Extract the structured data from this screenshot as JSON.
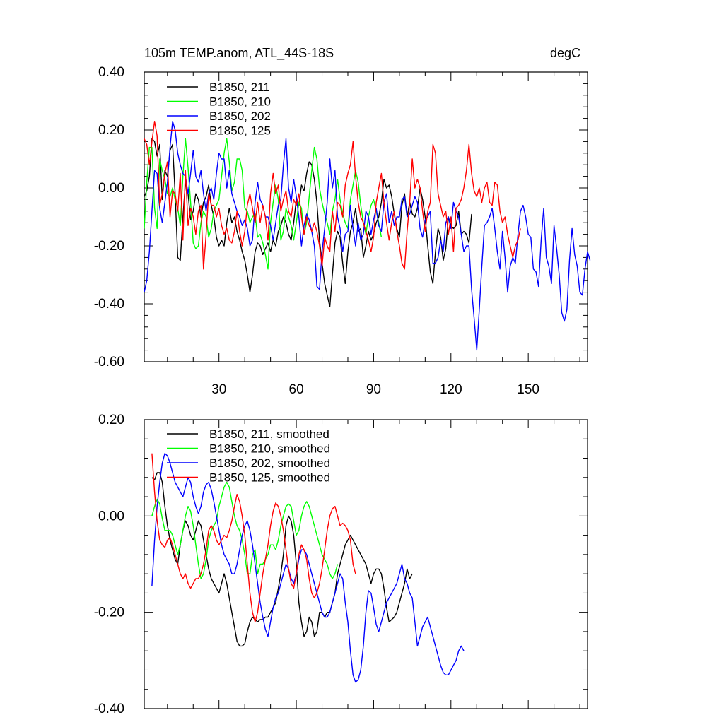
{
  "chart_data": [
    {
      "type": "line",
      "title": "105m TEMP.anom, ATL_44S-18S",
      "units": "degC",
      "xlim": [
        1,
        173
      ],
      "ylim": [
        -0.6,
        0.4
      ],
      "yticks": [
        -0.6,
        -0.4,
        -0.2,
        0.0,
        0.2,
        0.4
      ],
      "ytick_labels": [
        "-0.60",
        "-0.40",
        "-0.20",
        "0.00",
        "0.20",
        "0.40"
      ],
      "xticks": [
        30,
        60,
        90,
        120,
        150
      ],
      "xtick_labels": [
        "30",
        "60",
        "90",
        "120",
        "150"
      ],
      "series": [
        {
          "name": "B1850, 211",
          "color": "#000000",
          "x_start": 1,
          "values": [
            -0.03,
            -0.01,
            0.04,
            0.17,
            0.16,
            0.11,
            0.15,
            -0.04,
            0.06,
            0.04,
            0.13,
            0.15,
            -0.02,
            -0.24,
            -0.25,
            -0.1,
            0.02,
            -0.02,
            -0.11,
            -0.08,
            -0.02,
            -0.04,
            -0.1,
            -0.05,
            -0.03,
            0.01,
            -0.06,
            -0.1,
            -0.17,
            -0.2,
            -0.18,
            -0.2,
            -0.12,
            -0.07,
            -0.12,
            -0.1,
            -0.15,
            -0.18,
            -0.22,
            -0.25,
            -0.3,
            -0.36,
            -0.3,
            -0.22,
            -0.19,
            -0.2,
            -0.23,
            -0.21,
            -0.19,
            -0.22,
            -0.18,
            -0.2,
            -0.15,
            -0.13,
            -0.1,
            -0.12,
            -0.16,
            -0.18,
            -0.12,
            -0.04,
            -0.06,
            0.01,
            -0.01,
            0.05,
            0.09,
            0.08,
            0.03,
            -0.05,
            -0.18,
            -0.26,
            -0.33,
            -0.37,
            -0.41,
            -0.3,
            -0.19,
            -0.15,
            -0.17,
            -0.26,
            -0.33,
            -0.22,
            -0.15,
            -0.12,
            -0.07,
            -0.15,
            -0.14,
            -0.24,
            -0.2,
            -0.15,
            -0.18,
            -0.16,
            -0.12,
            -0.1,
            -0.05,
            0.03,
            0.0,
            0.01,
            -0.03,
            -0.09,
            -0.14,
            -0.17,
            -0.06,
            -0.02,
            -0.1,
            -0.05,
            -0.09,
            -0.1,
            -0.07,
            0.0,
            -0.04,
            -0.1,
            -0.2,
            -0.29,
            -0.33,
            -0.22,
            -0.14,
            -0.17,
            -0.25,
            -0.21,
            -0.1,
            -0.13,
            -0.14,
            -0.13,
            -0.08,
            -0.16,
            -0.15,
            -0.16,
            -0.19,
            -0.09
          ]
        },
        {
          "name": "B1850, 210",
          "color": "#00ff00",
          "x_start": 1,
          "values": [
            -0.14,
            0.02,
            0.14,
            0.14,
            -0.07,
            -0.14,
            0.1,
            0.06,
            0.03,
            -0.02,
            -0.03,
            0.0,
            -0.04,
            -0.07,
            -0.13,
            0.04,
            0.17,
            0.07,
            -0.05,
            -0.19,
            -0.21,
            -0.2,
            -0.12,
            -0.08,
            -0.1,
            -0.17,
            -0.14,
            -0.08,
            -0.06,
            -0.04,
            0.04,
            0.12,
            0.17,
            0.09,
            -0.01,
            0.02,
            0.1,
            0.1,
            0.06,
            -0.07,
            -0.08,
            -0.12,
            -0.1,
            -0.09,
            -0.17,
            -0.16,
            -0.19,
            -0.23,
            -0.28,
            -0.12,
            -0.05,
            0.01,
            -0.04,
            -0.18,
            -0.15,
            -0.07,
            -0.1,
            -0.13,
            -0.18,
            -0.12,
            -0.05,
            -0.07,
            -0.16,
            -0.12,
            -0.03,
            0.06,
            0.14,
            0.1,
            0.0,
            -0.05,
            -0.09,
            -0.12,
            -0.16,
            -0.08,
            -0.04,
            0.03,
            -0.04,
            -0.09,
            -0.12,
            -0.14,
            -0.04,
            0.01,
            0.06,
            0.02,
            -0.06,
            -0.12,
            -0.16,
            -0.1,
            -0.06,
            -0.04,
            -0.08,
            -0.12,
            -0.17
          ]
        },
        {
          "name": "B1850, 202",
          "color": "#0000ff",
          "x_start": 1,
          "values": [
            -0.36,
            -0.32,
            -0.22,
            -0.08,
            0.06,
            0.05,
            -0.07,
            -0.12,
            -0.05,
            0.02,
            0.14,
            0.23,
            0.2,
            0.12,
            0.08,
            0.05,
            0.04,
            -0.02,
            0.05,
            0.13,
            0.04,
            0.02,
            0.06,
            -0.02,
            -0.08,
            -0.02,
            0.0,
            -0.04,
            0.05,
            0.12,
            0.1,
            0.1,
            0.0,
            0.06,
            -0.02,
            -0.05,
            -0.08,
            -0.1,
            -0.13,
            -0.11,
            -0.14,
            -0.2,
            -0.18,
            -0.05,
            0.02,
            -0.04,
            -0.06,
            -0.1,
            -0.1,
            -0.13,
            -0.18,
            -0.12,
            -0.06,
            -0.04,
            0.08,
            0.17,
            0.0,
            -0.05,
            0.03,
            -0.03,
            -0.1,
            -0.2,
            -0.13,
            -0.09,
            -0.11,
            -0.15,
            -0.2,
            -0.34,
            -0.35,
            -0.22,
            -0.14,
            -0.05,
            0.1,
            0.0,
            0.06,
            -0.1,
            -0.14,
            -0.22,
            -0.16,
            -0.15,
            -0.06,
            -0.14,
            -0.2,
            -0.12,
            -0.18,
            -0.16,
            -0.08,
            -0.1,
            -0.16,
            -0.11,
            -0.07,
            -0.13,
            -0.15,
            -0.05,
            -0.02,
            -0.12,
            -0.08,
            -0.13,
            -0.1,
            -0.1,
            -0.04,
            -0.03,
            -0.1,
            -0.09,
            -0.06,
            -0.03,
            -0.05,
            -0.14,
            -0.17,
            -0.11,
            -0.1,
            -0.08,
            -0.26,
            -0.26,
            -0.24,
            -0.18,
            -0.22,
            -0.12,
            -0.1,
            -0.14,
            -0.05,
            -0.08,
            -0.1,
            -0.16,
            -0.22,
            -0.2,
            -0.2,
            -0.35,
            -0.45,
            -0.56,
            -0.42,
            -0.27,
            -0.13,
            -0.12,
            -0.1,
            -0.07,
            -0.14,
            -0.22,
            -0.28,
            -0.15,
            -0.24,
            -0.36,
            -0.27,
            -0.24,
            -0.26,
            -0.16,
            -0.08,
            -0.06,
            -0.1,
            -0.16,
            -0.17,
            -0.28,
            -0.29,
            -0.34,
            -0.18,
            -0.07,
            -0.24,
            -0.27,
            -0.33,
            -0.13,
            -0.21,
            -0.3,
            -0.43,
            -0.46,
            -0.42,
            -0.25,
            -0.14,
            -0.23,
            -0.27,
            -0.36,
            -0.37,
            -0.28,
            -0.22,
            -0.25
          ]
        },
        {
          "name": "B1850, 125",
          "color": "#ff0000",
          "x_start": 1,
          "values": [
            0.17,
            0.15,
            0.08,
            0.16,
            0.23,
            0.18,
            -0.06,
            -0.02,
            0.05,
            0.09,
            -0.1,
            -0.01,
            -0.02,
            -0.08,
            0.05,
            -0.18,
            0.06,
            -0.13,
            -0.07,
            -0.1,
            -0.16,
            -0.08,
            -0.06,
            -0.28,
            -0.16,
            -0.02,
            -0.06,
            -0.06,
            -0.1,
            -0.07,
            -0.13,
            -0.16,
            -0.14,
            -0.18,
            -0.19,
            -0.15,
            -0.08,
            -0.15,
            -0.2,
            -0.15,
            -0.06,
            -0.02,
            -0.07,
            -0.12,
            -0.05,
            -0.12,
            -0.06,
            -0.1,
            -0.18,
            -0.02,
            0.05,
            -0.02,
            0.01,
            -0.08,
            -0.04,
            -0.01,
            -0.08,
            -0.1,
            -0.04,
            -0.06,
            -0.02,
            -0.1,
            -0.16,
            -0.1,
            -0.13,
            -0.15,
            -0.12,
            -0.15,
            -0.2,
            -0.27,
            -0.17,
            -0.2,
            -0.22,
            -0.08,
            -0.15,
            -0.05,
            -0.06,
            -0.1,
            0.01,
            0.05,
            0.08,
            0.16,
            0.04,
            -0.05,
            -0.1,
            -0.12,
            -0.15,
            -0.18,
            -0.22,
            -0.17,
            -0.05,
            0.0,
            0.05,
            -0.05,
            -0.12,
            -0.18,
            -0.12,
            -0.08,
            -0.15,
            -0.2,
            -0.26,
            -0.28,
            -0.15,
            -0.05,
            0.1,
            0.0,
            0.03,
            0.0,
            -0.08,
            -0.15,
            -0.08,
            -0.05,
            0.15,
            0.12,
            -0.02,
            -0.06,
            -0.1,
            -0.08,
            -0.16,
            -0.1,
            -0.22,
            -0.07,
            -0.06,
            -0.04,
            0.0,
            0.06,
            0.15,
            0.05,
            -0.01,
            -0.03,
            0.0,
            -0.05,
            0.0,
            0.02,
            -0.05,
            -0.06,
            0.02,
            0.01,
            -0.08,
            -0.12,
            -0.1,
            -0.16,
            -0.2,
            -0.24,
            -0.2,
            -0.18,
            -0.14
          ]
        }
      ]
    },
    {
      "type": "line",
      "title": "",
      "xlim": [
        1,
        173
      ],
      "ylim": [
        -0.4,
        0.2
      ],
      "yticks": [
        -0.4,
        -0.2,
        0.0,
        0.2
      ],
      "ytick_labels": [
        "-0.40",
        "-0.20",
        "0.00",
        "0.20"
      ],
      "xticks": [
        30,
        60,
        90,
        120,
        150
      ],
      "xtick_labels": [],
      "series": [
        {
          "name": "B1850, 211, smoothed",
          "color": "#000000",
          "x_start": 4,
          "values": [
            0.08,
            0.075,
            0.09,
            0.09,
            0.07,
            0.02,
            -0.02,
            -0.05,
            -0.07,
            -0.09,
            -0.1,
            -0.06,
            -0.03,
            -0.01,
            -0.02,
            -0.04,
            -0.05,
            -0.03,
            -0.01,
            -0.02,
            -0.05,
            -0.08,
            -0.11,
            -0.13,
            -0.14,
            -0.15,
            -0.16,
            -0.14,
            -0.12,
            -0.14,
            -0.17,
            -0.2,
            -0.23,
            -0.26,
            -0.27,
            -0.27,
            -0.265,
            -0.24,
            -0.22,
            -0.21,
            -0.215,
            -0.22,
            -0.215,
            -0.215,
            -0.21,
            -0.21,
            -0.2,
            -0.19,
            -0.18,
            -0.15,
            -0.12,
            -0.08,
            -0.02,
            0.0,
            -0.01,
            -0.04,
            -0.1,
            -0.18,
            -0.22,
            -0.25,
            -0.24,
            -0.21,
            -0.22,
            -0.25,
            -0.24,
            -0.2,
            -0.2,
            -0.21,
            -0.2,
            -0.2,
            -0.18,
            -0.16,
            -0.12,
            -0.1,
            -0.08,
            -0.06,
            -0.05,
            -0.04,
            -0.05,
            -0.06,
            -0.07,
            -0.08,
            -0.09,
            -0.1,
            -0.12,
            -0.14,
            -0.12,
            -0.11,
            -0.11,
            -0.12,
            -0.15,
            -0.19,
            -0.22,
            -0.215,
            -0.21,
            -0.2,
            -0.18,
            -0.16,
            -0.14,
            -0.11,
            -0.13,
            -0.12
          ]
        },
        {
          "name": "B1850, 210, smoothed",
          "color": "#00ff00",
          "x_start": 4,
          "values": [
            0.0,
            0.02,
            0.035,
            0.025,
            -0.005,
            -0.03,
            -0.03,
            -0.03,
            -0.04,
            -0.06,
            -0.08,
            -0.06,
            -0.03,
            0.0,
            0.02,
            0.01,
            -0.02,
            -0.06,
            -0.1,
            -0.13,
            -0.12,
            -0.09,
            -0.05,
            -0.03,
            -0.02,
            -0.01,
            0.02,
            0.04,
            0.06,
            0.07,
            0.06,
            0.03,
            0.0,
            -0.02,
            -0.03,
            -0.05,
            -0.08,
            -0.12,
            -0.12,
            -0.08,
            -0.07,
            -0.12,
            -0.1,
            -0.1,
            -0.09,
            -0.08,
            -0.06,
            -0.06,
            -0.07,
            -0.05,
            -0.02,
            0.0,
            0.02,
            0.025,
            0.02,
            -0.01,
            -0.04,
            -0.03,
            0.0,
            0.02,
            0.03,
            0.02,
            0.0,
            -0.02,
            -0.04,
            -0.06,
            -0.08,
            -0.09,
            -0.1,
            -0.12,
            -0.13,
            -0.12,
            -0.1
          ]
        },
        {
          "name": "B1850, 202, smoothed",
          "color": "#0000ff",
          "x_start": 4,
          "values": [
            -0.145,
            -0.05,
            0.02,
            0.07,
            0.11,
            0.13,
            0.125,
            0.11,
            0.09,
            0.07,
            0.06,
            0.05,
            0.04,
            0.06,
            0.08,
            0.07,
            0.04,
            0.02,
            0.005,
            0.02,
            0.05,
            0.065,
            0.07,
            0.055,
            0.03,
            0.0,
            -0.03,
            -0.06,
            -0.08,
            -0.09,
            -0.1,
            -0.12,
            -0.12,
            -0.1,
            -0.07,
            -0.04,
            -0.02,
            -0.01,
            -0.03,
            -0.06,
            -0.1,
            -0.14,
            -0.18,
            -0.21,
            -0.235,
            -0.25,
            -0.22,
            -0.19,
            -0.17,
            -0.16,
            -0.14,
            -0.12,
            -0.1,
            -0.11,
            -0.13,
            -0.14,
            -0.12,
            -0.09,
            -0.07,
            -0.07,
            -0.08,
            -0.1,
            -0.12,
            -0.14,
            -0.16,
            -0.18,
            -0.2,
            -0.21,
            -0.21,
            -0.2,
            -0.18,
            -0.16,
            -0.14,
            -0.12,
            -0.13,
            -0.18,
            -0.22,
            -0.28,
            -0.33,
            -0.345,
            -0.34,
            -0.32,
            -0.27,
            -0.2,
            -0.155,
            -0.16,
            -0.19,
            -0.225,
            -0.24,
            -0.22,
            -0.2,
            -0.18,
            -0.17,
            -0.16,
            -0.15,
            -0.14,
            -0.12,
            -0.1,
            -0.13,
            -0.14,
            -0.16,
            -0.17,
            -0.22,
            -0.27,
            -0.25,
            -0.23,
            -0.22,
            -0.21,
            -0.23,
            -0.25,
            -0.27,
            -0.29,
            -0.31,
            -0.325,
            -0.33,
            -0.33,
            -0.32,
            -0.31,
            -0.3,
            -0.28,
            -0.27,
            -0.28
          ]
        },
        {
          "name": "B1850, 125, smoothed",
          "color": "#ff0000",
          "x_start": 4,
          "values": [
            0.13,
            0.05,
            -0.01,
            -0.05,
            -0.06,
            -0.065,
            -0.05,
            -0.045,
            -0.06,
            -0.08,
            -0.1,
            -0.12,
            -0.13,
            -0.12,
            -0.14,
            -0.15,
            -0.14,
            -0.13,
            -0.13,
            -0.12,
            -0.1,
            -0.07,
            -0.03,
            -0.02,
            -0.03,
            -0.05,
            -0.06,
            -0.05,
            -0.04,
            -0.045,
            -0.03,
            -0.01,
            0.02,
            0.045,
            0.03,
            0.0,
            -0.04,
            -0.1,
            -0.16,
            -0.2,
            -0.22,
            -0.2,
            -0.16,
            -0.12,
            -0.09,
            -0.06,
            -0.02,
            0.01,
            0.027,
            0.02,
            0.0,
            -0.03,
            -0.07,
            -0.11,
            -0.14,
            -0.15,
            -0.12,
            -0.08,
            -0.06,
            -0.07,
            -0.09,
            -0.13,
            -0.16,
            -0.17,
            -0.16,
            -0.14,
            -0.11,
            -0.07,
            -0.03,
            0.0,
            0.015,
            0.02,
            0.0,
            -0.02,
            -0.015,
            -0.02,
            -0.03,
            -0.05,
            -0.1,
            -0.12
          ]
        }
      ]
    }
  ]
}
